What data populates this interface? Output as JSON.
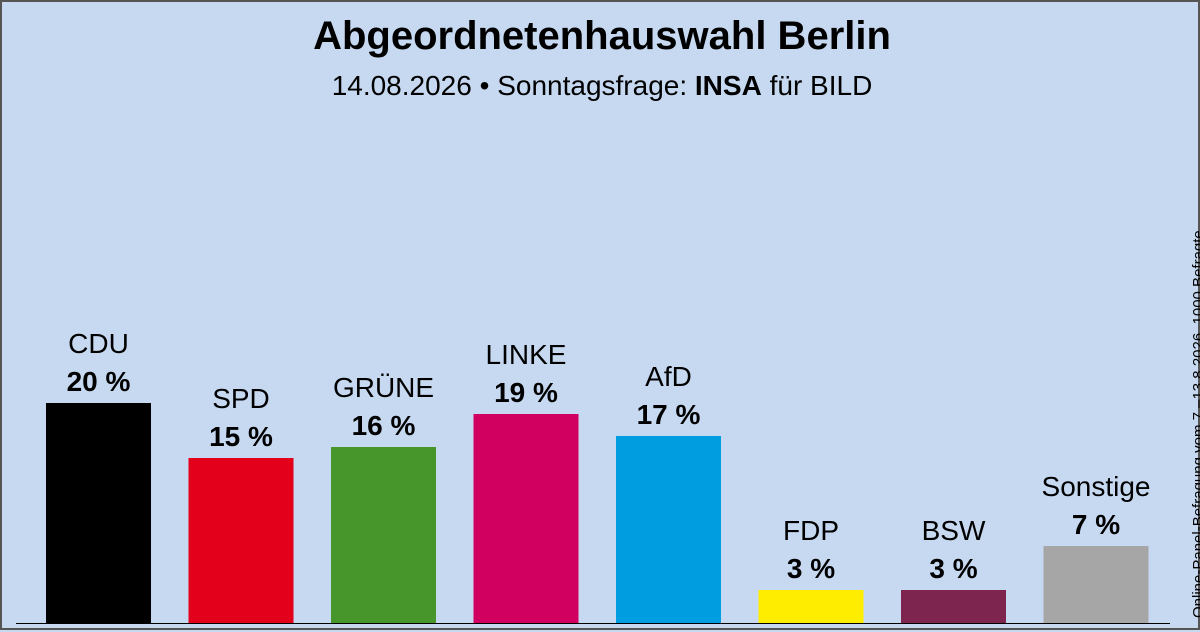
{
  "header": {
    "title": "Abgeordnetenhauswahl Berlin",
    "date": "14.08.2026",
    "separator": "•",
    "label": "Sonntagsfrage:",
    "institute": "INSA",
    "client": "für BILD"
  },
  "side_note": "Online-Panel-Befragung vom 7.–13.8.2026, 1000 Befragte",
  "chart_data": {
    "type": "bar",
    "title": "Abgeordnetenhauswahl Berlin",
    "subtitle": "14.08.2026 • Sonntagsfrage: INSA für BILD",
    "categories": [
      "CDU",
      "SPD",
      "GRÜNE",
      "LINKE",
      "AfD",
      "FDP",
      "BSW",
      "Sonstige"
    ],
    "values": [
      20,
      15,
      16,
      19,
      17,
      3,
      3,
      7
    ],
    "value_labels": [
      "20 %",
      "15 %",
      "16 %",
      "19 %",
      "17 %",
      "3 %",
      "3 %",
      "7 %"
    ],
    "colors": [
      "#000000",
      "#e3001b",
      "#46962b",
      "#d10060",
      "#009ee0",
      "#ffed00",
      "#7d254f",
      "#a6a6a6"
    ],
    "unit": "%",
    "grid": false,
    "legend": "none"
  }
}
